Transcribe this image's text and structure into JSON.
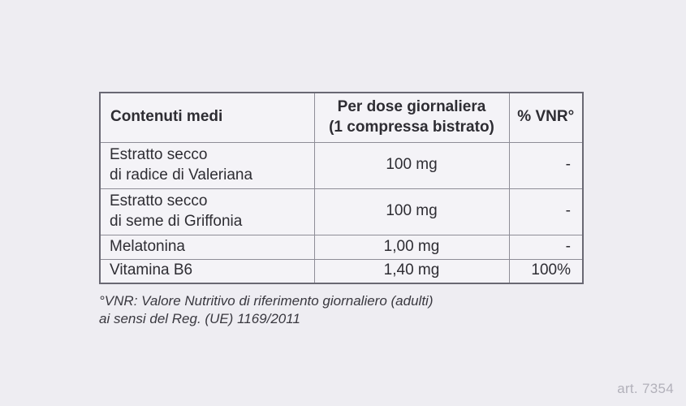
{
  "page": {
    "art_number": "art. 7354"
  },
  "colors": {
    "page_background": "#eeedf2",
    "table_background": "#f4f3f7",
    "border_outer": "#696873",
    "border_inner": "#8e8d97",
    "text": "#2e2d33",
    "art_number_text": "#b2b1ba"
  },
  "table": {
    "headers": {
      "contents": "Contenuti medi",
      "per_dose": "Per dose giornaliera\n(1 compressa bistrato)",
      "vnr": "% VNR°"
    },
    "rows": [
      {
        "name": "Estratto secco\ndi radice di Valeriana",
        "dose": "100 mg",
        "vnr": "-"
      },
      {
        "name": "Estratto secco\ndi seme di Griffonia",
        "dose": "100 mg",
        "vnr": "-"
      },
      {
        "name": "Melatonina",
        "dose": "1,00 mg",
        "vnr": "-"
      },
      {
        "name": "Vitamina B6",
        "dose": "1,40 mg",
        "vnr": "100%"
      }
    ]
  },
  "footnote": "°VNR: Valore Nutritivo di riferimento giornaliero (adulti)\nai sensi del Reg. (UE) 1169/2011"
}
